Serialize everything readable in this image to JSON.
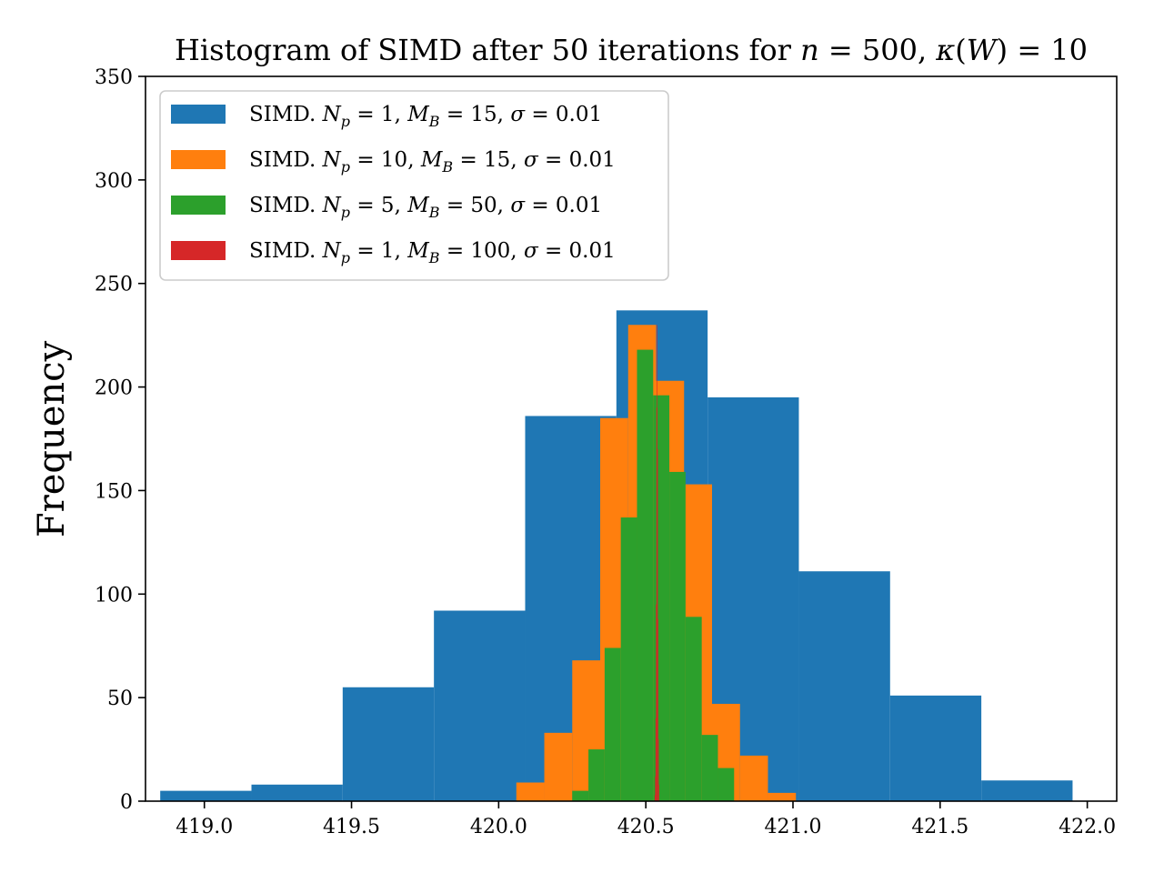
{
  "chart_data": {
    "type": "histogram",
    "title": {
      "prefix": "Histogram of SIMD after 50 iterations for ",
      "n_var": "n",
      "n_eq": " = 500, ",
      "kappa": "κ",
      "W_open": "(",
      "W_var": "W",
      "W_close": ")",
      "kappa_eq": " = 10"
    },
    "xlabel": "",
    "ylabel": "Frequency",
    "xlim": [
      418.8,
      422.1
    ],
    "ylim": [
      0,
      350
    ],
    "xticks": [
      "419.0",
      "419.5",
      "420.0",
      "420.5",
      "421.0",
      "421.5",
      "422.0"
    ],
    "xtick_values": [
      419.0,
      419.5,
      420.0,
      420.5,
      421.0,
      421.5,
      422.0
    ],
    "yticks": [
      "0",
      "50",
      "100",
      "150",
      "200",
      "250",
      "300",
      "350"
    ],
    "ytick_values": [
      0,
      50,
      100,
      150,
      200,
      250,
      300,
      350
    ],
    "legend_position": "upper-left",
    "series": [
      {
        "name_parts": {
          "prefix": "SIMD. ",
          "np_var": "N",
          "np_sub": "p",
          "np_eq": " = ",
          "np_val": "1",
          "mb_sep": ", ",
          "mb_var": "M",
          "mb_sub": "B",
          "mb_eq": " = 15, ",
          "sigma": "σ",
          "sigma_eq": " = ",
          "sigma_val": "0.01"
        },
        "color": "#1f77b4",
        "bin_edges": [
          418.85,
          419.16,
          419.47,
          419.78,
          420.09,
          420.4,
          420.71,
          421.02,
          421.33,
          421.64,
          421.95
        ],
        "counts": [
          5,
          8,
          55,
          92,
          186,
          237,
          195,
          111,
          51,
          10
        ]
      },
      {
        "name_parts": {
          "prefix": "SIMD. ",
          "np_var": "N",
          "np_sub": "p",
          "np_eq": " = ",
          "np_val": "10",
          "mb_sep": ", ",
          "mb_var": "M",
          "mb_sub": "B",
          "mb_eq": " = 15, ",
          "sigma": "σ",
          "sigma_eq": " = ",
          "sigma_val": "0.01"
        },
        "color": "#ff7f0e",
        "bin_edges": [
          420.06,
          420.155,
          420.25,
          420.345,
          420.44,
          420.535,
          420.63,
          420.725,
          420.82,
          420.915,
          421.01
        ],
        "counts": [
          9,
          33,
          68,
          185,
          230,
          203,
          153,
          47,
          22,
          4
        ]
      },
      {
        "name_parts": {
          "prefix": "SIMD. ",
          "np_var": "N",
          "np_sub": "p",
          "np_eq": " = ",
          "np_val": "5",
          "mb_sep": ", ",
          "mb_var": "M",
          "mb_sub": "B",
          "mb_eq": " = 50, ",
          "sigma": "σ",
          "sigma_eq": " = ",
          "sigma_val": "0.01"
        },
        "color": "#2ca02c",
        "bin_edges": [
          420.25,
          420.305,
          420.36,
          420.415,
          420.47,
          420.525,
          420.58,
          420.635,
          420.69,
          420.745,
          420.8
        ],
        "counts": [
          5,
          25,
          74,
          137,
          218,
          196,
          159,
          89,
          32,
          16
        ]
      },
      {
        "name_parts": {
          "prefix": "SIMD. ",
          "np_var": "N",
          "np_sub": "p",
          "np_eq": " = ",
          "np_val": "1",
          "mb_sep": ", ",
          "mb_var": "M",
          "mb_sub": "B",
          "mb_eq": " = 100, ",
          "sigma": "σ",
          "sigma_eq": " = ",
          "sigma_val": "0.01"
        },
        "color": "#d62728",
        "bin_edges": [
          420.53,
          420.5315,
          420.533,
          420.5345,
          420.536,
          420.5375,
          420.539,
          420.5405,
          420.542,
          420.5435,
          420.545
        ],
        "counts": [
          3,
          12,
          40,
          95,
          190,
          230,
          170,
          88,
          30,
          8
        ]
      }
    ]
  }
}
